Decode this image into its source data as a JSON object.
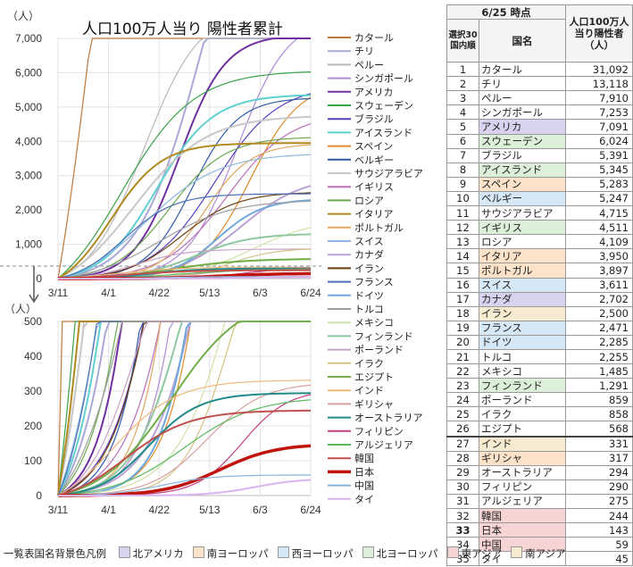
{
  "chart_data": {
    "type": "line",
    "title": "人口100万人当り 陽性者累計",
    "ylabel": "（人）",
    "x_ticks": [
      "3/11",
      "4/1",
      "4/22",
      "5/13",
      "6/3",
      "6/24"
    ],
    "top_panel": {
      "ylim": [
        0,
        7000
      ],
      "yticks": [
        "0",
        "1,000",
        "2,000",
        "3,000",
        "4,000",
        "5,000",
        "6,000",
        "7,000"
      ]
    },
    "bottom_panel": {
      "ylim": [
        0,
        500
      ],
      "yticks": [
        "0",
        "100",
        "200",
        "300",
        "400",
        "500"
      ]
    },
    "series": [
      {
        "name": "カタール",
        "color": "#c0783a",
        "final": 31092
      },
      {
        "name": "チリ",
        "color": "#a9a9d8",
        "final": 13118
      },
      {
        "name": "ペルー",
        "color": "#b8b8b8",
        "final": 7910
      },
      {
        "name": "シンガポール",
        "color": "#b08bd6",
        "final": 7253
      },
      {
        "name": "アメリカ",
        "color": "#7030a0",
        "final": 7091
      },
      {
        "name": "スウェーデン",
        "color": "#3aa14a",
        "final": 6024
      },
      {
        "name": "ブラジル",
        "color": "#5a3fbf",
        "final": 5391
      },
      {
        "name": "アイスランド",
        "color": "#5fd0d0",
        "final": 5345
      },
      {
        "name": "スペイン",
        "color": "#e08a2a",
        "final": 5283
      },
      {
        "name": "ベルギー",
        "color": "#2e5aa8",
        "final": 5247
      },
      {
        "name": "サウジアラビア",
        "color": "#c8c8c8",
        "final": 4715
      },
      {
        "name": "イギリス",
        "color": "#b870b8",
        "final": 4511
      },
      {
        "name": "ロシア",
        "color": "#6aa84f",
        "final": 4109
      },
      {
        "name": "イタリア",
        "color": "#b08a20",
        "final": 3950
      },
      {
        "name": "ポルトガル",
        "color": "#e0a860",
        "final": 3897
      },
      {
        "name": "スイス",
        "color": "#8fb7dd",
        "final": 3611
      },
      {
        "name": "カナダ",
        "color": "#b9a3d6",
        "final": 2702
      },
      {
        "name": "イラン",
        "color": "#6b3e10",
        "final": 2500
      },
      {
        "name": "フランス",
        "color": "#4a6fb8",
        "final": 2471
      },
      {
        "name": "ドイツ",
        "color": "#6fa8dc",
        "final": 2285
      },
      {
        "name": "トルコ",
        "color": "#9e9e9e",
        "final": 2255
      },
      {
        "name": "メキシコ",
        "color": "#cfe2a8",
        "final": 1485
      },
      {
        "name": "フィンランド",
        "color": "#8fc8a0",
        "final": 1291
      },
      {
        "name": "ポーランド",
        "color": "#c9a4c9",
        "final": 859
      },
      {
        "name": "イラク",
        "color": "#d4c184",
        "final": 858
      },
      {
        "name": "エジプト",
        "color": "#70ad47",
        "final": 568
      },
      {
        "name": "インド",
        "color": "#f1b77e",
        "final": 331
      },
      {
        "name": "ギリシャ",
        "color": "#d9a0a0",
        "final": 317
      },
      {
        "name": "オーストラリア",
        "color": "#208a8a",
        "final": 294
      },
      {
        "name": "フィリピン",
        "color": "#c04080",
        "final": 290
      },
      {
        "name": "アルジェリア",
        "color": "#5cb85c",
        "final": 275
      },
      {
        "name": "韓国",
        "color": "#c0504d",
        "final": 244
      },
      {
        "name": "日本",
        "color": "#c0140c",
        "final": 143
      },
      {
        "name": "中国",
        "color": "#8ab4e0",
        "final": 59
      },
      {
        "name": "タイ",
        "color": "#d8b4f0",
        "final": 45
      }
    ]
  },
  "table": {
    "header_date": "6/25 時点",
    "header_rank": "選択30国内順",
    "header_name": "国名",
    "header_value": "人口100万人当り陽性者（人）",
    "rows": [
      {
        "rank": "1",
        "name": "カタール",
        "value": "31,092",
        "region": ""
      },
      {
        "rank": "2",
        "name": "チリ",
        "value": "13,118",
        "region": ""
      },
      {
        "rank": "3",
        "name": "ペルー",
        "value": "7,910",
        "region": ""
      },
      {
        "rank": "4",
        "name": "シンガポール",
        "value": "7,253",
        "region": ""
      },
      {
        "rank": "5",
        "name": "アメリカ",
        "value": "7,091",
        "region": "na"
      },
      {
        "rank": "6",
        "name": "スウェーデン",
        "value": "6,024",
        "region": "ne"
      },
      {
        "rank": "7",
        "name": "ブラジル",
        "value": "5,391",
        "region": ""
      },
      {
        "rank": "8",
        "name": "アイスランド",
        "value": "5,345",
        "region": "ne"
      },
      {
        "rank": "9",
        "name": "スペイン",
        "value": "5,283",
        "region": "se"
      },
      {
        "rank": "10",
        "name": "ベルギー",
        "value": "5,247",
        "region": "we"
      },
      {
        "rank": "11",
        "name": "サウジアラビア",
        "value": "4,715",
        "region": ""
      },
      {
        "rank": "12",
        "name": "イギリス",
        "value": "4,511",
        "region": "ne"
      },
      {
        "rank": "13",
        "name": "ロシア",
        "value": "4,109",
        "region": ""
      },
      {
        "rank": "14",
        "name": "イタリア",
        "value": "3,950",
        "region": "se"
      },
      {
        "rank": "15",
        "name": "ポルトガル",
        "value": "3,897",
        "region": "se"
      },
      {
        "rank": "16",
        "name": "スイス",
        "value": "3,611",
        "region": "we"
      },
      {
        "rank": "17",
        "name": "カナダ",
        "value": "2,702",
        "region": "na"
      },
      {
        "rank": "18",
        "name": "イラン",
        "value": "2,500",
        "region": "sa"
      },
      {
        "rank": "19",
        "name": "フランス",
        "value": "2,471",
        "region": "we"
      },
      {
        "rank": "20",
        "name": "ドイツ",
        "value": "2,285",
        "region": "we"
      },
      {
        "rank": "21",
        "name": "トルコ",
        "value": "2,255",
        "region": ""
      },
      {
        "rank": "22",
        "name": "メキシコ",
        "value": "1,485",
        "region": ""
      },
      {
        "rank": "23",
        "name": "フィンランド",
        "value": "1,291",
        "region": "ne"
      },
      {
        "rank": "24",
        "name": "ポーランド",
        "value": "859",
        "region": ""
      },
      {
        "rank": "25",
        "name": "イラク",
        "value": "858",
        "region": ""
      },
      {
        "rank": "26",
        "name": "エジプト",
        "value": "568",
        "region": ""
      },
      {
        "rank": "27",
        "name": "インド",
        "value": "331",
        "region": "sa"
      },
      {
        "rank": "28",
        "name": "ギリシャ",
        "value": "317",
        "region": "se"
      },
      {
        "rank": "29",
        "name": "オーストラリア",
        "value": "294",
        "region": ""
      },
      {
        "rank": "30",
        "name": "フィリピン",
        "value": "290",
        "region": ""
      },
      {
        "rank": "31",
        "name": "アルジェリア",
        "value": "275",
        "region": ""
      },
      {
        "rank": "32",
        "name": "韓国",
        "value": "244",
        "region": "ea"
      },
      {
        "rank": "33",
        "name": "日本",
        "value": "143",
        "region": "ea"
      },
      {
        "rank": "34",
        "name": "中国",
        "value": "59",
        "region": "ea"
      },
      {
        "rank": "35",
        "name": "タイ",
        "value": "45",
        "region": ""
      }
    ]
  },
  "region_legend": {
    "label": "一覧表国名背景色凡例",
    "items": [
      {
        "key": "na",
        "name": "北アメリカ",
        "color": "#d9d2ee"
      },
      {
        "key": "se",
        "name": "南ヨーロッパ",
        "color": "#fbe2c9"
      },
      {
        "key": "we",
        "name": "西ヨーロッパ",
        "color": "#d6e7f5"
      },
      {
        "key": "ne",
        "name": "北ヨーロッパ",
        "color": "#dcefd8"
      },
      {
        "key": "ea",
        "name": "東アジア",
        "color": "#f6d4d4"
      },
      {
        "key": "sa",
        "name": "南アジア",
        "color": "#f6ead0"
      }
    ]
  }
}
